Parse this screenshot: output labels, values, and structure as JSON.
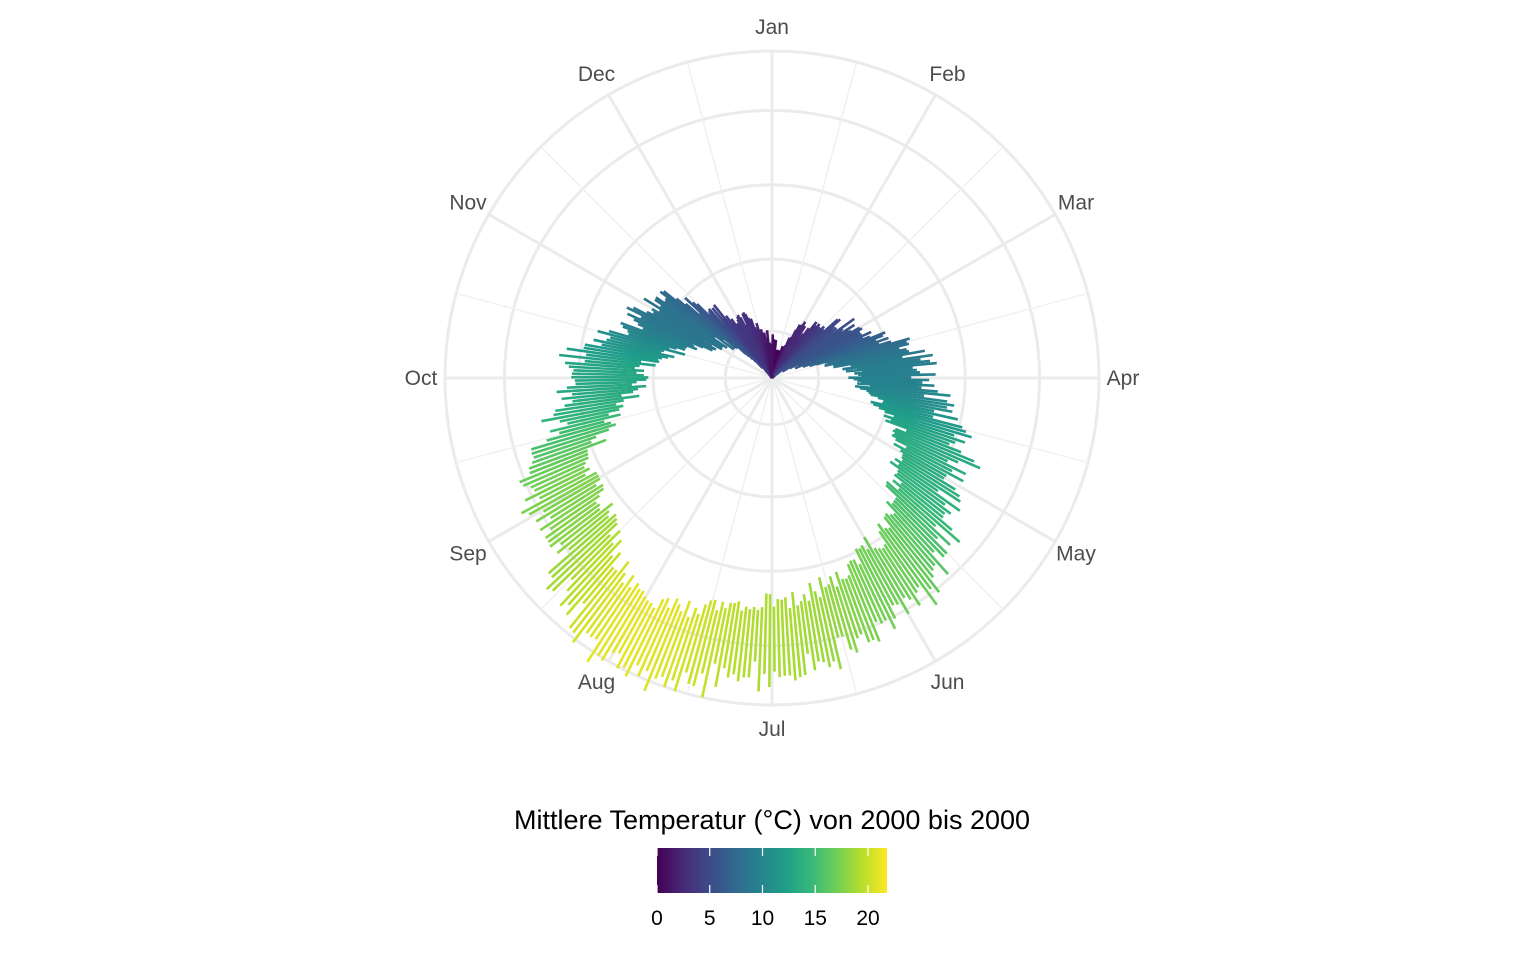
{
  "chart_data": {
    "type": "bar",
    "coord": "polar",
    "x_unit": "day of year",
    "months": [
      "Jan",
      "Feb",
      "Mar",
      "Apr",
      "May",
      "Jun",
      "Jul",
      "Aug",
      "Sep",
      "Oct",
      "Nov",
      "Dec"
    ],
    "daily_temperature_keyframes": [
      {
        "day": 1,
        "temp": 1.0
      },
      {
        "day": 15,
        "temp": 0.2
      },
      {
        "day": 32,
        "temp": 2.5
      },
      {
        "day": 60,
        "temp": 5.5
      },
      {
        "day": 91,
        "temp": 9.5
      },
      {
        "day": 121,
        "temp": 13.5
      },
      {
        "day": 152,
        "temp": 17.0
      },
      {
        "day": 182,
        "temp": 19.0
      },
      {
        "day": 213,
        "temp": 21.0
      },
      {
        "day": 244,
        "temp": 17.5
      },
      {
        "day": 274,
        "temp": 13.0
      },
      {
        "day": 305,
        "temp": 8.5
      },
      {
        "day": 335,
        "temp": 3.5
      },
      {
        "day": 365,
        "temp": 1.0
      }
    ],
    "ylim": [
      0,
      22
    ],
    "grid": true,
    "legend": {
      "title": "Mittlere Temperatur (°C) von 2000 bis 2000",
      "position": "bottom",
      "ticks": [
        0,
        5,
        10,
        15,
        20
      ],
      "tick_labels": [
        "0",
        "5",
        "10",
        "15",
        "20"
      ],
      "range": [
        0,
        21.8
      ],
      "palette": "viridis",
      "colors": [
        "#440154",
        "#482878",
        "#3e4989",
        "#31688e",
        "#26828e",
        "#1f9e89",
        "#35b779",
        "#6ece58",
        "#b5de2b",
        "#fde725"
      ]
    }
  }
}
